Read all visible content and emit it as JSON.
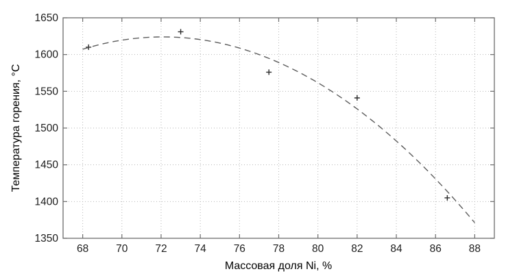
{
  "chart_data": {
    "type": "scatter",
    "title": "",
    "xlabel": "Массовая доля Ni, %",
    "ylabel": "Температура горения, °C",
    "xlim": [
      67,
      89
    ],
    "ylim": [
      1350,
      1650
    ],
    "x_ticks": [
      68,
      70,
      72,
      74,
      76,
      78,
      80,
      82,
      84,
      86,
      88
    ],
    "y_ticks": [
      1350,
      1400,
      1450,
      1500,
      1550,
      1600,
      1650
    ],
    "grid": "dotted",
    "series": [
      {
        "name": "experimental-points",
        "type": "scatter",
        "marker": "+",
        "points": [
          {
            "x": 68.3,
            "y": 1610
          },
          {
            "x": 73.0,
            "y": 1631
          },
          {
            "x": 77.5,
            "y": 1576
          },
          {
            "x": 82.0,
            "y": 1541
          },
          {
            "x": 86.6,
            "y": 1405
          }
        ]
      },
      {
        "name": "fit-curve",
        "type": "line",
        "style": "dashed",
        "model": "quadratic",
        "vertex": {
          "x": 72.1,
          "y": 1624
        },
        "coefficient_a": -1.0,
        "x_start": 68.0,
        "x_end": 88.0
      }
    ],
    "colors": {
      "axis": "#6b6b6b",
      "grid": "#b5b5b5",
      "curve": "#5c5c5c",
      "marker": "#2a2a2a",
      "text": "#1c1c1c",
      "background": "#ffffff"
    }
  }
}
